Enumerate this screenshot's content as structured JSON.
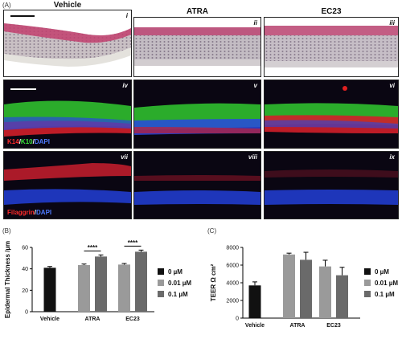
{
  "figure": {
    "panel_a_label": "(A)",
    "panel_b_label": "(B)",
    "panel_c_label": "(C)",
    "columns": [
      "Vehicle",
      "ATRA",
      "EC23"
    ],
    "panels": [
      "i",
      "ii",
      "iii",
      "iv",
      "v",
      "vi",
      "vii",
      "viii",
      "ix"
    ],
    "stain_row2": {
      "k14": "K14",
      "k10": "K10",
      "dapi": "DAPI",
      "sep": "/"
    },
    "stain_row3": {
      "filaggrin": "Filaggrin",
      "dapi": "DAPI",
      "sep": "/"
    }
  },
  "chart_data": [
    {
      "type": "bar",
      "panel": "B",
      "categories": [
        "Vehicle",
        "ATRA",
        "EC23"
      ],
      "ylabel": "Epidermal Thickness /µm",
      "ylim": [
        0,
        60
      ],
      "yticks": [
        0,
        20,
        40,
        60
      ],
      "series": [
        {
          "name": "0 µM",
          "color": "#111111",
          "values": [
            41,
            null,
            null
          ],
          "errors": [
            1.2,
            null,
            null
          ]
        },
        {
          "name": "0.01 µM",
          "color": "#9a9a9a",
          "values": [
            null,
            43.5,
            44
          ],
          "errors": [
            null,
            1,
            1
          ]
        },
        {
          "name": "0.1 µM",
          "color": "#6a6a6a",
          "values": [
            null,
            51.5,
            56
          ],
          "errors": [
            null,
            1.5,
            1.5
          ]
        }
      ],
      "significance": [
        {
          "label": "****",
          "category": "ATRA"
        },
        {
          "label": "****",
          "category": "EC23"
        }
      ],
      "legend": "right"
    },
    {
      "type": "bar",
      "panel": "C",
      "categories": [
        "Vehicle",
        "ATRA",
        "EC23"
      ],
      "ylabel": "TEER Ω cm²",
      "ylim": [
        0,
        8000
      ],
      "yticks": [
        0,
        2000,
        4000,
        6000,
        8000
      ],
      "series": [
        {
          "name": "0 µM",
          "color": "#111111",
          "values": [
            3700,
            null,
            null
          ],
          "errors": [
            400,
            null,
            null
          ]
        },
        {
          "name": "0.01 µM",
          "color": "#9a9a9a",
          "values": [
            null,
            7200,
            5850
          ],
          "errors": [
            null,
            150,
            700
          ]
        },
        {
          "name": "0.1 µM",
          "color": "#6a6a6a",
          "values": [
            null,
            6600,
            4850
          ],
          "errors": [
            null,
            850,
            900
          ]
        }
      ],
      "legend": "right"
    }
  ]
}
